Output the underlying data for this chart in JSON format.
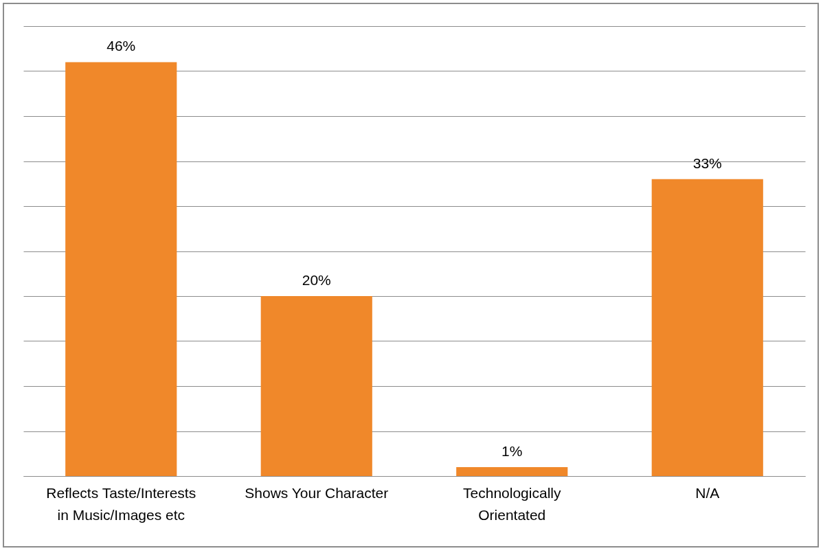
{
  "chart_data": {
    "type": "bar",
    "categories": [
      "Reflects Taste/Interests in Music/Images etc",
      "Shows Your Character",
      "Technologically Orientated",
      "N/A"
    ],
    "values": [
      46,
      20,
      1,
      33
    ],
    "value_labels": [
      "46%",
      "20%",
      "1%",
      "33%"
    ],
    "color": "#f0882a",
    "ylim": [
      0,
      50
    ],
    "yticks": [
      {
        "value": 0,
        "label": null
      },
      {
        "value": 5,
        "label": null
      },
      {
        "value": 10,
        "label": null
      },
      {
        "value": 15,
        "label": null
      },
      {
        "value": 20,
        "label": null
      },
      {
        "value": 25,
        "label": null
      },
      {
        "value": 30,
        "label": null
      },
      {
        "value": 35,
        "label": null
      },
      {
        "value": 40,
        "label": null
      },
      {
        "value": 45,
        "label": null
      },
      {
        "value": 50,
        "label": null
      }
    ],
    "grid": true,
    "tick_labels": "x"
  }
}
